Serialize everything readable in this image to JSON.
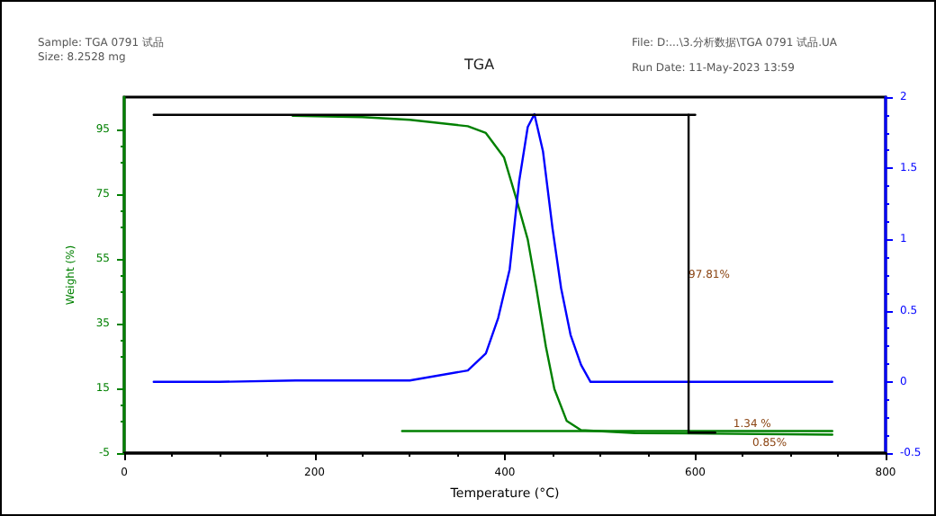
{
  "chart_data": {
    "type": "line",
    "title": "TGA",
    "xlabel": "Temperature (°C)",
    "ylabel": "Weight (%)",
    "xlim": [
      0,
      800
    ],
    "xticks": [
      0,
      200,
      400,
      600,
      800
    ],
    "ylim": [
      -5,
      105
    ],
    "yticks": [
      -5,
      15,
      35,
      55,
      75,
      95
    ],
    "y2lim": [
      -0.5,
      2.0
    ],
    "y2ticks": [
      -0.5,
      0.0,
      0.5,
      1.0,
      1.5,
      2.0
    ],
    "grid": false,
    "marker": "none",
    "line_style": "solid",
    "series": [
      {
        "color": "#008000",
        "x": [
          177,
          250,
          300,
          361,
          380,
          399,
          412,
          424,
          433,
          443,
          452,
          465,
          480,
          537,
          744
        ],
        "values": [
          99.2,
          98.8,
          98,
          96,
          93.9,
          86.4,
          73.6,
          61,
          46,
          28,
          14.8,
          4.9,
          2.1,
          1.2,
          0.7
        ]
      },
      {
        "color": "#008000",
        "x": [
          292,
          744
        ],
        "values": [
          1.8,
          1.8
        ]
      },
      {
        "color": "#0000ff",
        "axis": "y2",
        "x": [
          31,
          100,
          180,
          300,
          361,
          380,
          393,
          405,
          415,
          424,
          431,
          440,
          450,
          459,
          469,
          480,
          490,
          561,
          744
        ],
        "values": [
          0.0,
          0.0,
          0.01,
          0.01,
          0.08,
          0.2,
          0.45,
          0.79,
          1.41,
          1.79,
          1.88,
          1.62,
          1.08,
          0.66,
          0.33,
          0.12,
          0.0,
          0.0,
          0.0
        ]
      },
      {
        "color": "#000000",
        "x": [
          31,
          600
        ],
        "values": [
          99.5,
          99.5
        ]
      },
      {
        "color": "#000000",
        "x": [
          593,
          593
        ],
        "values": [
          99.5,
          1.3
        ]
      },
      {
        "color": "#000000",
        "x": [
          593,
          621
        ],
        "values": [
          1.3,
          1.3
        ]
      }
    ],
    "annotations": [
      "Sample: TGA 0791 试品",
      "Size: 8.2528 mg",
      "File: D:...\\3.分析数据\\TGA 0791 试品.UA",
      "Run Date: 11-May-2023 13:59",
      {
        "text": "97.81%",
        "x": 593,
        "y": 50
      },
      {
        "text": "1.34 %",
        "x": 640,
        "y": 1.8
      },
      {
        "text": "0.85%",
        "x": 660,
        "y": 0.9
      }
    ]
  }
}
